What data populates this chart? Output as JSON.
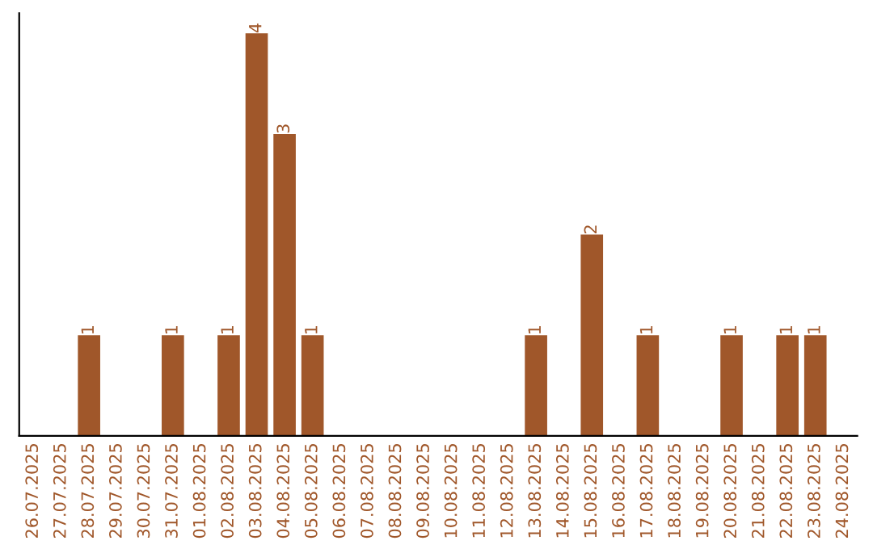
{
  "chart_data": {
    "type": "bar",
    "categories": [
      "26.07.2025",
      "27.07.2025",
      "28.07.2025",
      "29.07.2025",
      "30.07.2025",
      "31.07.2025",
      "01.08.2025",
      "02.08.2025",
      "03.08.2025",
      "04.08.2025",
      "05.08.2025",
      "06.08.2025",
      "07.08.2025",
      "08.08.2025",
      "09.08.2025",
      "10.08.2025",
      "11.08.2025",
      "12.08.2025",
      "13.08.2025",
      "14.08.2025",
      "15.08.2025",
      "16.08.2025",
      "17.08.2025",
      "18.08.2025",
      "19.08.2025",
      "20.08.2025",
      "21.08.2025",
      "22.08.2025",
      "23.08.2025",
      "24.08.2025"
    ],
    "values": [
      0,
      0,
      1,
      0,
      0,
      1,
      0,
      1,
      4,
      3,
      1,
      0,
      0,
      0,
      0,
      0,
      0,
      0,
      1,
      0,
      2,
      0,
      1,
      0,
      0,
      1,
      0,
      1,
      1,
      0
    ],
    "value_labels": [
      null,
      null,
      "1",
      null,
      null,
      "1",
      null,
      "1",
      "4",
      "3",
      "1",
      null,
      null,
      null,
      null,
      null,
      null,
      null,
      "1",
      null,
      "2",
      null,
      "1",
      null,
      null,
      "1",
      null,
      "1",
      "1",
      null
    ],
    "color": "#a0572a",
    "ylim": [
      0,
      4.2
    ],
    "tick_labels": "x",
    "grid": false,
    "legend": false
  }
}
